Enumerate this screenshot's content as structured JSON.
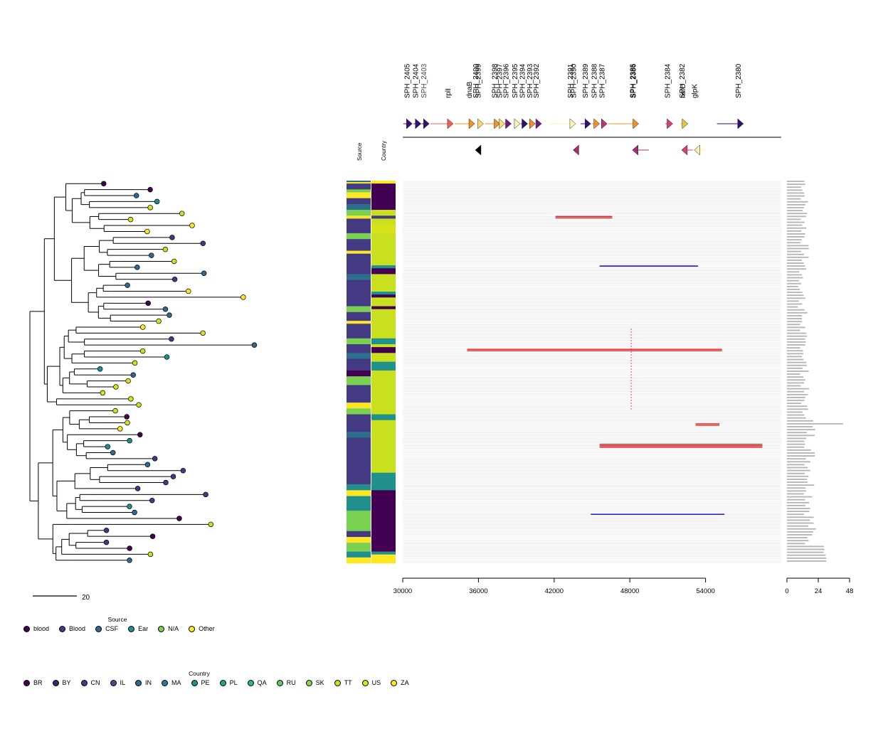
{
  "chart_data": {
    "type": "heatmap",
    "tree": {
      "scale_bar_label": "20"
    },
    "heatmap_columns": [
      {
        "label": "Source"
      },
      {
        "label": "Country"
      }
    ],
    "genes": [
      {
        "name": "SPH_2405",
        "start": 30050,
        "end": 30750,
        "strand": "+",
        "color": "#3b0f70"
      },
      {
        "name": "SPH_2404",
        "start": 30850,
        "end": 31450,
        "strand": "+",
        "color": "#3b0f70"
      },
      {
        "name": "SPH_2403",
        "start": 31500,
        "end": 32100,
        "strand": "+",
        "color": "#3b0f70",
        "muted": true
      },
      {
        "name": "rplI",
        "start": 32200,
        "end": 34000,
        "strand": "+",
        "color": "#f1605d"
      },
      {
        "name": "dnaB",
        "start": 34100,
        "end": 35700,
        "strand": "+",
        "color": "#f0922a"
      },
      {
        "name": "SPH_2400",
        "start": 35750,
        "end": 36000,
        "strand": "-",
        "color": "#000004"
      },
      {
        "name": "SPH_2399",
        "start": 36050,
        "end": 36400,
        "strand": "+",
        "color": "#fcdb6e"
      },
      {
        "name": "SPH_2398",
        "start": 36500,
        "end": 37700,
        "strand": "+",
        "color": "#f0922a"
      },
      {
        "name": "SPH_2397",
        "start": 37750,
        "end": 38100,
        "strand": "+",
        "color": "#fcdb6e"
      },
      {
        "name": "SPH_2396",
        "start": 38200,
        "end": 38600,
        "strand": "+",
        "color": "#6b1c81"
      },
      {
        "name": "SPH_2395",
        "start": 38700,
        "end": 39300,
        "strand": "+",
        "color": "#fcf5b0"
      },
      {
        "name": "SPH_2394",
        "start": 39350,
        "end": 39900,
        "strand": "+",
        "color": "#2c115f"
      },
      {
        "name": "SPH_2393",
        "start": 39950,
        "end": 40500,
        "strand": "+",
        "color": "#f0922a"
      },
      {
        "name": "SPH_2392",
        "start": 40550,
        "end": 41000,
        "strand": "+",
        "color": "#6b1c81"
      },
      {
        "name": "SPH_2391",
        "start": 41600,
        "end": 43700,
        "strand": "+",
        "color": "#fcf5b0"
      },
      {
        "name": "SPH_2390",
        "start": 43500,
        "end": 43900,
        "strand": "-",
        "color": "#a3306e"
      },
      {
        "name": "SPH_2389",
        "start": 44100,
        "end": 44900,
        "strand": "+",
        "color": "#3b0f70"
      },
      {
        "name": "SPH_2388",
        "start": 45000,
        "end": 45600,
        "strand": "+",
        "color": "#f0922a"
      },
      {
        "name": "SPH_2387",
        "start": 45700,
        "end": 46200,
        "strand": "+",
        "color": "#b73779"
      },
      {
        "name": "SPH_2386",
        "start": 46300,
        "end": 48700,
        "strand": "+",
        "color": "#f0922a"
      },
      {
        "name": "SPH_2385",
        "start": 48200,
        "end": 49500,
        "strand": "-",
        "color": "#a3306e"
      },
      {
        "name": "SPH_2384",
        "start": 50800,
        "end": 51400,
        "strand": "+",
        "color": "#d3436e"
      },
      {
        "name": "hslO",
        "start": 52000,
        "end": 52600,
        "strand": "+",
        "color": "#e6c23d"
      },
      {
        "name": "SPH_2382",
        "start": 52100,
        "end": 53000,
        "strand": "-",
        "color": "#d3436e"
      },
      {
        "name": "glpK",
        "start": 53100,
        "end": 54000,
        "strand": "-",
        "color": "#fcf5b0"
      },
      {
        "name": "SPH_2380",
        "start": 54900,
        "end": 57000,
        "strand": "+",
        "color": "#3b0f70"
      }
    ],
    "recombination_events": [
      {
        "start": 42100,
        "end": 46600,
        "color": "#e31a1c",
        "rows": [
          24,
          25
        ]
      },
      {
        "start": 45600,
        "end": 53400,
        "color": "#0000cc",
        "rows": [
          58
        ]
      },
      {
        "start": 35100,
        "end": 55300,
        "color": "#e31a1c",
        "rows": [
          115,
          116
        ]
      },
      {
        "start": 53200,
        "end": 55100,
        "color": "#e31a1c",
        "rows": [
          166,
          167
        ]
      },
      {
        "start": 45600,
        "end": 58500,
        "color": "#e31a1c",
        "rows": [
          180,
          181,
          182
        ]
      },
      {
        "start": 44900,
        "end": 55500,
        "color": "#0000cc",
        "rows": [
          228
        ]
      }
    ],
    "xaxis": {
      "xlim": [
        30000,
        60000
      ],
      "ticks": [
        "30000",
        "36000",
        "42000",
        "48000",
        "54000"
      ],
      "tick_values": [
        30000,
        36000,
        42000,
        48000,
        54000
      ]
    },
    "bar_axis": {
      "xlim": [
        0,
        48
      ],
      "ticks": [
        "0",
        "24",
        "48"
      ],
      "tick_values": [
        0,
        24,
        48
      ]
    },
    "legend_source": {
      "title": "Source",
      "items": [
        {
          "label": "blood",
          "color": "#440154"
        },
        {
          "label": "Blood",
          "color": "#443a83"
        },
        {
          "label": "CSF",
          "color": "#31688e"
        },
        {
          "label": "Ear",
          "color": "#21908c"
        },
        {
          "label": "N/A",
          "color": "#7ad151"
        },
        {
          "label": "Other",
          "color": "#fde725"
        }
      ]
    },
    "legend_country": {
      "title": "Country",
      "items": [
        {
          "label": "BR",
          "color": "#440154"
        },
        {
          "label": "BY",
          "color": "#481f70"
        },
        {
          "label": "CN",
          "color": "#443983"
        },
        {
          "label": "IL",
          "color": "#3b528b"
        },
        {
          "label": "IN",
          "color": "#31688e"
        },
        {
          "label": "MA",
          "color": "#287c8e"
        },
        {
          "label": "PE",
          "color": "#21918c"
        },
        {
          "label": "PL",
          "color": "#20a486"
        },
        {
          "label": "QA",
          "color": "#35b779"
        },
        {
          "label": "RU",
          "color": "#5ec962"
        },
        {
          "label": "SK",
          "color": "#90d743"
        },
        {
          "label": "TT",
          "color": "#c8e020"
        },
        {
          "label": "US",
          "color": "#d8e219"
        },
        {
          "label": "ZA",
          "color": "#fde725"
        }
      ]
    },
    "heatmap_blocks": {
      "source": [
        {
          "from": 0,
          "to": 1,
          "color": "#2d708e"
        },
        {
          "from": 1,
          "to": 2,
          "color": "#fde725"
        },
        {
          "from": 2,
          "to": 6,
          "color": "#443a83"
        },
        {
          "from": 6,
          "to": 8,
          "color": "#7ad151"
        },
        {
          "from": 8,
          "to": 12,
          "color": "#fde725"
        },
        {
          "from": 12,
          "to": 16,
          "color": "#443a83"
        },
        {
          "from": 16,
          "to": 20,
          "color": "#2d708e"
        },
        {
          "from": 20,
          "to": 24,
          "color": "#7ad151"
        },
        {
          "from": 24,
          "to": 26,
          "color": "#fde725"
        },
        {
          "from": 26,
          "to": 36,
          "color": "#443a83"
        },
        {
          "from": 36,
          "to": 40,
          "color": "#7ad151"
        },
        {
          "from": 40,
          "to": 48,
          "color": "#443a83"
        },
        {
          "from": 48,
          "to": 50,
          "color": "#fde725"
        },
        {
          "from": 50,
          "to": 64,
          "color": "#443a83"
        },
        {
          "from": 64,
          "to": 68,
          "color": "#2d708e"
        },
        {
          "from": 68,
          "to": 86,
          "color": "#443a83"
        },
        {
          "from": 86,
          "to": 90,
          "color": "#7ad151"
        },
        {
          "from": 90,
          "to": 96,
          "color": "#443a83"
        },
        {
          "from": 96,
          "to": 98,
          "color": "#fde725"
        },
        {
          "from": 98,
          "to": 108,
          "color": "#443a83"
        },
        {
          "from": 108,
          "to": 112,
          "color": "#7ad151"
        },
        {
          "from": 112,
          "to": 118,
          "color": "#443a83"
        },
        {
          "from": 118,
          "to": 122,
          "color": "#2d708e"
        },
        {
          "from": 122,
          "to": 130,
          "color": "#443a83"
        },
        {
          "from": 130,
          "to": 134,
          "color": "#440154"
        },
        {
          "from": 134,
          "to": 140,
          "color": "#7ad151"
        },
        {
          "from": 140,
          "to": 152,
          "color": "#443a83"
        },
        {
          "from": 152,
          "to": 156,
          "color": "#fde725"
        },
        {
          "from": 156,
          "to": 160,
          "color": "#7ad151"
        },
        {
          "from": 160,
          "to": 172,
          "color": "#443a83"
        },
        {
          "from": 172,
          "to": 176,
          "color": "#2d708e"
        },
        {
          "from": 176,
          "to": 208,
          "color": "#443a83"
        },
        {
          "from": 208,
          "to": 212,
          "color": "#21908c"
        },
        {
          "from": 212,
          "to": 216,
          "color": "#fde725"
        },
        {
          "from": 216,
          "to": 226,
          "color": "#21908c"
        },
        {
          "from": 226,
          "to": 240,
          "color": "#7ad151"
        },
        {
          "from": 240,
          "to": 244,
          "color": "#443a83"
        },
        {
          "from": 244,
          "to": 248,
          "color": "#fde725"
        },
        {
          "from": 248,
          "to": 254,
          "color": "#7ad151"
        },
        {
          "from": 254,
          "to": 258,
          "color": "#21908c"
        },
        {
          "from": 258,
          "to": 262,
          "color": "#fde725"
        }
      ],
      "country": [
        {
          "from": 0,
          "to": 2,
          "color": "#fde725"
        },
        {
          "from": 2,
          "to": 20,
          "color": "#440154"
        },
        {
          "from": 20,
          "to": 24,
          "color": "#c8e020"
        },
        {
          "from": 24,
          "to": 26,
          "color": "#443983"
        },
        {
          "from": 26,
          "to": 30,
          "color": "#c8e020"
        },
        {
          "from": 30,
          "to": 36,
          "color": "#d8e219"
        },
        {
          "from": 36,
          "to": 58,
          "color": "#c8e020"
        },
        {
          "from": 58,
          "to": 60,
          "color": "#21918c"
        },
        {
          "from": 60,
          "to": 64,
          "color": "#440154"
        },
        {
          "from": 64,
          "to": 76,
          "color": "#c8e020"
        },
        {
          "from": 76,
          "to": 78,
          "color": "#21918c"
        },
        {
          "from": 78,
          "to": 80,
          "color": "#440154"
        },
        {
          "from": 80,
          "to": 86,
          "color": "#c8e020"
        },
        {
          "from": 86,
          "to": 88,
          "color": "#440154"
        },
        {
          "from": 88,
          "to": 108,
          "color": "#c8e020"
        },
        {
          "from": 108,
          "to": 112,
          "color": "#21918c"
        },
        {
          "from": 112,
          "to": 114,
          "color": "#c8e020"
        },
        {
          "from": 114,
          "to": 118,
          "color": "#440154"
        },
        {
          "from": 118,
          "to": 124,
          "color": "#c8e020"
        },
        {
          "from": 124,
          "to": 130,
          "color": "#21918c"
        },
        {
          "from": 130,
          "to": 160,
          "color": "#c8e020"
        },
        {
          "from": 160,
          "to": 164,
          "color": "#21918c"
        },
        {
          "from": 164,
          "to": 200,
          "color": "#c8e020"
        },
        {
          "from": 200,
          "to": 212,
          "color": "#21918c"
        },
        {
          "from": 212,
          "to": 254,
          "color": "#440154"
        },
        {
          "from": 254,
          "to": 256,
          "color": "#21918c"
        },
        {
          "from": 256,
          "to": 262,
          "color": "#fde725"
        }
      ]
    }
  }
}
